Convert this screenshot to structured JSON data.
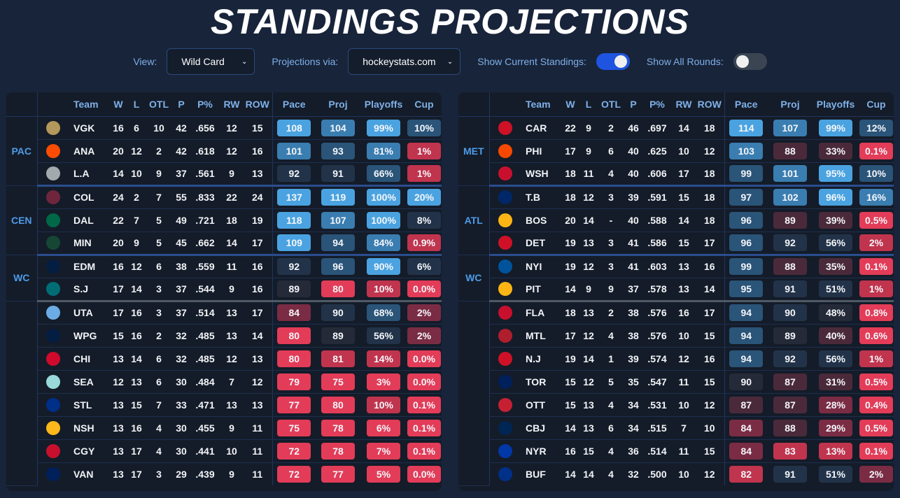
{
  "title": "STANDINGS PROJECTIONS",
  "controls": {
    "view_label": "View:",
    "view_value": "Wild Card",
    "proj_label": "Projections via:",
    "proj_value": "hockeystats.com",
    "current_label": "Show Current Standings:",
    "current_on": true,
    "rounds_label": "Show All Rounds:",
    "rounds_on": false
  },
  "headers": [
    "",
    "",
    "Team",
    "W",
    "L",
    "OTL",
    "P",
    "P%",
    "RW",
    "ROW",
    "Pace",
    "Proj",
    "Playoffs",
    "Cup"
  ],
  "colors": {
    "strong_blue": "#4aa3e0",
    "mid_blue": "#3a7db0",
    "dark_blue": "#2a5478",
    "navy": "#223349",
    "slate": "#252a38",
    "wine": "#4a2a3a",
    "maroon": "#7a2c44",
    "red": "#c0344e",
    "bright_red": "#e23c58"
  },
  "west": {
    "groups": [
      {
        "name": "PAC",
        "rows": [
          {
            "team": "VGK",
            "logo": "#b4975a",
            "w": "16",
            "l": "6",
            "otl": "10",
            "p": "42",
            "pct": ".656",
            "rw": "12",
            "row": "15",
            "pace": "108",
            "pace_c": "strong_blue",
            "proj": "104",
            "proj_c": "mid_blue",
            "playoffs": "99%",
            "playoffs_c": "strong_blue",
            "cup": "10%",
            "cup_c": "dark_blue"
          },
          {
            "team": "ANA",
            "logo": "#fc4c02",
            "w": "20",
            "l": "12",
            "otl": "2",
            "p": "42",
            "pct": ".618",
            "rw": "12",
            "row": "16",
            "pace": "101",
            "pace_c": "mid_blue",
            "proj": "93",
            "proj_c": "dark_blue",
            "playoffs": "81%",
            "playoffs_c": "mid_blue",
            "cup": "1%",
            "cup_c": "red"
          },
          {
            "team": "L.A",
            "logo": "#a2aaad",
            "w": "14",
            "l": "10",
            "otl": "9",
            "p": "37",
            "pct": ".561",
            "rw": "9",
            "row": "13",
            "pace": "92",
            "pace_c": "navy",
            "proj": "91",
            "proj_c": "navy",
            "playoffs": "66%",
            "playoffs_c": "dark_blue",
            "cup": "1%",
            "cup_c": "red"
          }
        ]
      },
      {
        "name": "CEN",
        "rows": [
          {
            "team": "COL",
            "logo": "#6f263d",
            "w": "24",
            "l": "2",
            "otl": "7",
            "p": "55",
            "pct": ".833",
            "rw": "22",
            "row": "24",
            "pace": "137",
            "pace_c": "strong_blue",
            "proj": "119",
            "proj_c": "strong_blue",
            "playoffs": "100%",
            "playoffs_c": "strong_blue",
            "cup": "20%",
            "cup_c": "strong_blue"
          },
          {
            "team": "DAL",
            "logo": "#006847",
            "w": "22",
            "l": "7",
            "otl": "5",
            "p": "49",
            "pct": ".721",
            "rw": "18",
            "row": "19",
            "pace": "118",
            "pace_c": "strong_blue",
            "proj": "107",
            "proj_c": "mid_blue",
            "playoffs": "100%",
            "playoffs_c": "strong_blue",
            "cup": "8%",
            "cup_c": "navy"
          },
          {
            "team": "MIN",
            "logo": "#154734",
            "w": "20",
            "l": "9",
            "otl": "5",
            "p": "45",
            "pct": ".662",
            "rw": "14",
            "row": "17",
            "pace": "109",
            "pace_c": "strong_blue",
            "proj": "94",
            "proj_c": "dark_blue",
            "playoffs": "84%",
            "playoffs_c": "mid_blue",
            "cup": "0.9%",
            "cup_c": "red"
          }
        ]
      },
      {
        "name": "WC",
        "rows": [
          {
            "team": "EDM",
            "logo": "#041e42",
            "w": "16",
            "l": "12",
            "otl": "6",
            "p": "38",
            "pct": ".559",
            "rw": "11",
            "row": "16",
            "pace": "92",
            "pace_c": "navy",
            "proj": "96",
            "proj_c": "dark_blue",
            "playoffs": "90%",
            "playoffs_c": "strong_blue",
            "cup": "6%",
            "cup_c": "navy"
          },
          {
            "team": "S.J",
            "logo": "#006d75",
            "w": "17",
            "l": "14",
            "otl": "3",
            "p": "37",
            "pct": ".544",
            "rw": "9",
            "row": "16",
            "pace": "89",
            "pace_c": "slate",
            "proj": "80",
            "proj_c": "bright_red",
            "playoffs": "10%",
            "playoffs_c": "red",
            "cup": "0.0%",
            "cup_c": "bright_red"
          }
        ]
      },
      {
        "name": "",
        "rows": [
          {
            "team": "UTA",
            "logo": "#6cace4",
            "w": "17",
            "l": "16",
            "otl": "3",
            "p": "37",
            "pct": ".514",
            "rw": "13",
            "row": "17",
            "pace": "84",
            "pace_c": "maroon",
            "proj": "90",
            "proj_c": "navy",
            "playoffs": "68%",
            "playoffs_c": "dark_blue",
            "cup": "2%",
            "cup_c": "maroon"
          },
          {
            "team": "WPG",
            "logo": "#041e42",
            "w": "15",
            "l": "16",
            "otl": "2",
            "p": "32",
            "pct": ".485",
            "rw": "13",
            "row": "14",
            "pace": "80",
            "pace_c": "bright_red",
            "proj": "89",
            "proj_c": "slate",
            "playoffs": "56%",
            "playoffs_c": "navy",
            "cup": "2%",
            "cup_c": "maroon"
          },
          {
            "team": "CHI",
            "logo": "#cf0a2c",
            "w": "13",
            "l": "14",
            "otl": "6",
            "p": "32",
            "pct": ".485",
            "rw": "12",
            "row": "13",
            "pace": "80",
            "pace_c": "bright_red",
            "proj": "81",
            "proj_c": "red",
            "playoffs": "14%",
            "playoffs_c": "red",
            "cup": "0.0%",
            "cup_c": "bright_red"
          },
          {
            "team": "SEA",
            "logo": "#99d9d9",
            "w": "12",
            "l": "13",
            "otl": "6",
            "p": "30",
            "pct": ".484",
            "rw": "7",
            "row": "12",
            "pace": "79",
            "pace_c": "bright_red",
            "proj": "75",
            "proj_c": "bright_red",
            "playoffs": "3%",
            "playoffs_c": "bright_red",
            "cup": "0.0%",
            "cup_c": "bright_red"
          },
          {
            "team": "STL",
            "logo": "#002f87",
            "w": "13",
            "l": "15",
            "otl": "7",
            "p": "33",
            "pct": ".471",
            "rw": "13",
            "row": "13",
            "pace": "77",
            "pace_c": "bright_red",
            "proj": "80",
            "proj_c": "bright_red",
            "playoffs": "10%",
            "playoffs_c": "red",
            "cup": "0.1%",
            "cup_c": "bright_red"
          },
          {
            "team": "NSH",
            "logo": "#ffb81c",
            "w": "13",
            "l": "16",
            "otl": "4",
            "p": "30",
            "pct": ".455",
            "rw": "9",
            "row": "11",
            "pace": "75",
            "pace_c": "bright_red",
            "proj": "78",
            "proj_c": "bright_red",
            "playoffs": "6%",
            "playoffs_c": "bright_red",
            "cup": "0.1%",
            "cup_c": "bright_red"
          },
          {
            "team": "CGY",
            "logo": "#c8102e",
            "w": "13",
            "l": "17",
            "otl": "4",
            "p": "30",
            "pct": ".441",
            "rw": "10",
            "row": "11",
            "pace": "72",
            "pace_c": "bright_red",
            "proj": "78",
            "proj_c": "bright_red",
            "playoffs": "7%",
            "playoffs_c": "bright_red",
            "cup": "0.1%",
            "cup_c": "bright_red"
          },
          {
            "team": "VAN",
            "logo": "#00205b",
            "w": "13",
            "l": "17",
            "otl": "3",
            "p": "29",
            "pct": ".439",
            "rw": "9",
            "row": "11",
            "pace": "72",
            "pace_c": "bright_red",
            "proj": "77",
            "proj_c": "bright_red",
            "playoffs": "5%",
            "playoffs_c": "bright_red",
            "cup": "0.0%",
            "cup_c": "bright_red"
          }
        ]
      }
    ]
  },
  "east": {
    "groups": [
      {
        "name": "MET",
        "rows": [
          {
            "team": "CAR",
            "logo": "#ce1126",
            "w": "22",
            "l": "9",
            "otl": "2",
            "p": "46",
            "pct": ".697",
            "rw": "14",
            "row": "18",
            "pace": "114",
            "pace_c": "strong_blue",
            "proj": "107",
            "proj_c": "mid_blue",
            "playoffs": "99%",
            "playoffs_c": "strong_blue",
            "cup": "12%",
            "cup_c": "dark_blue"
          },
          {
            "team": "PHI",
            "logo": "#f74902",
            "w": "17",
            "l": "9",
            "otl": "6",
            "p": "40",
            "pct": ".625",
            "rw": "10",
            "row": "12",
            "pace": "103",
            "pace_c": "mid_blue",
            "proj": "88",
            "proj_c": "wine",
            "playoffs": "33%",
            "playoffs_c": "wine",
            "cup": "0.1%",
            "cup_c": "bright_red"
          },
          {
            "team": "WSH",
            "logo": "#c8102e",
            "w": "18",
            "l": "11",
            "otl": "4",
            "p": "40",
            "pct": ".606",
            "rw": "17",
            "row": "18",
            "pace": "99",
            "pace_c": "dark_blue",
            "proj": "101",
            "proj_c": "mid_blue",
            "playoffs": "95%",
            "playoffs_c": "strong_blue",
            "cup": "10%",
            "cup_c": "dark_blue"
          }
        ]
      },
      {
        "name": "ATL",
        "rows": [
          {
            "team": "T.B",
            "logo": "#002868",
            "w": "18",
            "l": "12",
            "otl": "3",
            "p": "39",
            "pct": ".591",
            "rw": "15",
            "row": "18",
            "pace": "97",
            "pace_c": "dark_blue",
            "proj": "102",
            "proj_c": "mid_blue",
            "playoffs": "96%",
            "playoffs_c": "strong_blue",
            "cup": "16%",
            "cup_c": "mid_blue"
          },
          {
            "team": "BOS",
            "logo": "#fcb514",
            "w": "20",
            "l": "14",
            "otl": "-",
            "p": "40",
            "pct": ".588",
            "rw": "14",
            "row": "18",
            "pace": "96",
            "pace_c": "dark_blue",
            "proj": "89",
            "proj_c": "wine",
            "playoffs": "39%",
            "playoffs_c": "wine",
            "cup": "0.5%",
            "cup_c": "bright_red"
          },
          {
            "team": "DET",
            "logo": "#ce1126",
            "w": "19",
            "l": "13",
            "otl": "3",
            "p": "41",
            "pct": ".586",
            "rw": "15",
            "row": "17",
            "pace": "96",
            "pace_c": "dark_blue",
            "proj": "92",
            "proj_c": "navy",
            "playoffs": "56%",
            "playoffs_c": "navy",
            "cup": "2%",
            "cup_c": "red"
          }
        ]
      },
      {
        "name": "WC",
        "rows": [
          {
            "team": "NYI",
            "logo": "#00539b",
            "w": "19",
            "l": "12",
            "otl": "3",
            "p": "41",
            "pct": ".603",
            "rw": "13",
            "row": "16",
            "pace": "99",
            "pace_c": "dark_blue",
            "proj": "88",
            "proj_c": "wine",
            "playoffs": "35%",
            "playoffs_c": "wine",
            "cup": "0.1%",
            "cup_c": "bright_red"
          },
          {
            "team": "PIT",
            "logo": "#fcb514",
            "w": "14",
            "l": "9",
            "otl": "9",
            "p": "37",
            "pct": ".578",
            "rw": "13",
            "row": "14",
            "pace": "95",
            "pace_c": "dark_blue",
            "proj": "91",
            "proj_c": "navy",
            "playoffs": "51%",
            "playoffs_c": "navy",
            "cup": "1%",
            "cup_c": "red"
          }
        ]
      },
      {
        "name": "",
        "rows": [
          {
            "team": "FLA",
            "logo": "#c8102e",
            "w": "18",
            "l": "13",
            "otl": "2",
            "p": "38",
            "pct": ".576",
            "rw": "16",
            "row": "17",
            "pace": "94",
            "pace_c": "dark_blue",
            "proj": "90",
            "proj_c": "navy",
            "playoffs": "48%",
            "playoffs_c": "slate",
            "cup": "0.8%",
            "cup_c": "bright_red"
          },
          {
            "team": "MTL",
            "logo": "#af1e2d",
            "w": "17",
            "l": "12",
            "otl": "4",
            "p": "38",
            "pct": ".576",
            "rw": "10",
            "row": "15",
            "pace": "94",
            "pace_c": "dark_blue",
            "proj": "89",
            "proj_c": "slate",
            "playoffs": "40%",
            "playoffs_c": "wine",
            "cup": "0.6%",
            "cup_c": "bright_red"
          },
          {
            "team": "N.J",
            "logo": "#ce1126",
            "w": "19",
            "l": "14",
            "otl": "1",
            "p": "39",
            "pct": ".574",
            "rw": "12",
            "row": "16",
            "pace": "94",
            "pace_c": "dark_blue",
            "proj": "92",
            "proj_c": "navy",
            "playoffs": "56%",
            "playoffs_c": "navy",
            "cup": "1%",
            "cup_c": "red"
          },
          {
            "team": "TOR",
            "logo": "#00205b",
            "w": "15",
            "l": "12",
            "otl": "5",
            "p": "35",
            "pct": ".547",
            "rw": "11",
            "row": "15",
            "pace": "90",
            "pace_c": "slate",
            "proj": "87",
            "proj_c": "wine",
            "playoffs": "31%",
            "playoffs_c": "wine",
            "cup": "0.5%",
            "cup_c": "bright_red"
          },
          {
            "team": "OTT",
            "logo": "#c52032",
            "w": "15",
            "l": "13",
            "otl": "4",
            "p": "34",
            "pct": ".531",
            "rw": "10",
            "row": "12",
            "pace": "87",
            "pace_c": "wine",
            "proj": "87",
            "proj_c": "wine",
            "playoffs": "28%",
            "playoffs_c": "maroon",
            "cup": "0.4%",
            "cup_c": "bright_red"
          },
          {
            "team": "CBJ",
            "logo": "#002654",
            "w": "14",
            "l": "13",
            "otl": "6",
            "p": "34",
            "pct": ".515",
            "rw": "7",
            "row": "10",
            "pace": "84",
            "pace_c": "maroon",
            "proj": "88",
            "proj_c": "wine",
            "playoffs": "29%",
            "playoffs_c": "maroon",
            "cup": "0.5%",
            "cup_c": "bright_red"
          },
          {
            "team": "NYR",
            "logo": "#0038a8",
            "w": "16",
            "l": "15",
            "otl": "4",
            "p": "36",
            "pct": ".514",
            "rw": "11",
            "row": "15",
            "pace": "84",
            "pace_c": "maroon",
            "proj": "83",
            "proj_c": "red",
            "playoffs": "13%",
            "playoffs_c": "red",
            "cup": "0.1%",
            "cup_c": "bright_red"
          },
          {
            "team": "BUF",
            "logo": "#003087",
            "w": "14",
            "l": "14",
            "otl": "4",
            "p": "32",
            "pct": ".500",
            "rw": "10",
            "row": "12",
            "pace": "82",
            "pace_c": "red",
            "proj": "91",
            "proj_c": "navy",
            "playoffs": "51%",
            "playoffs_c": "navy",
            "cup": "2%",
            "cup_c": "maroon"
          }
        ]
      }
    ]
  }
}
